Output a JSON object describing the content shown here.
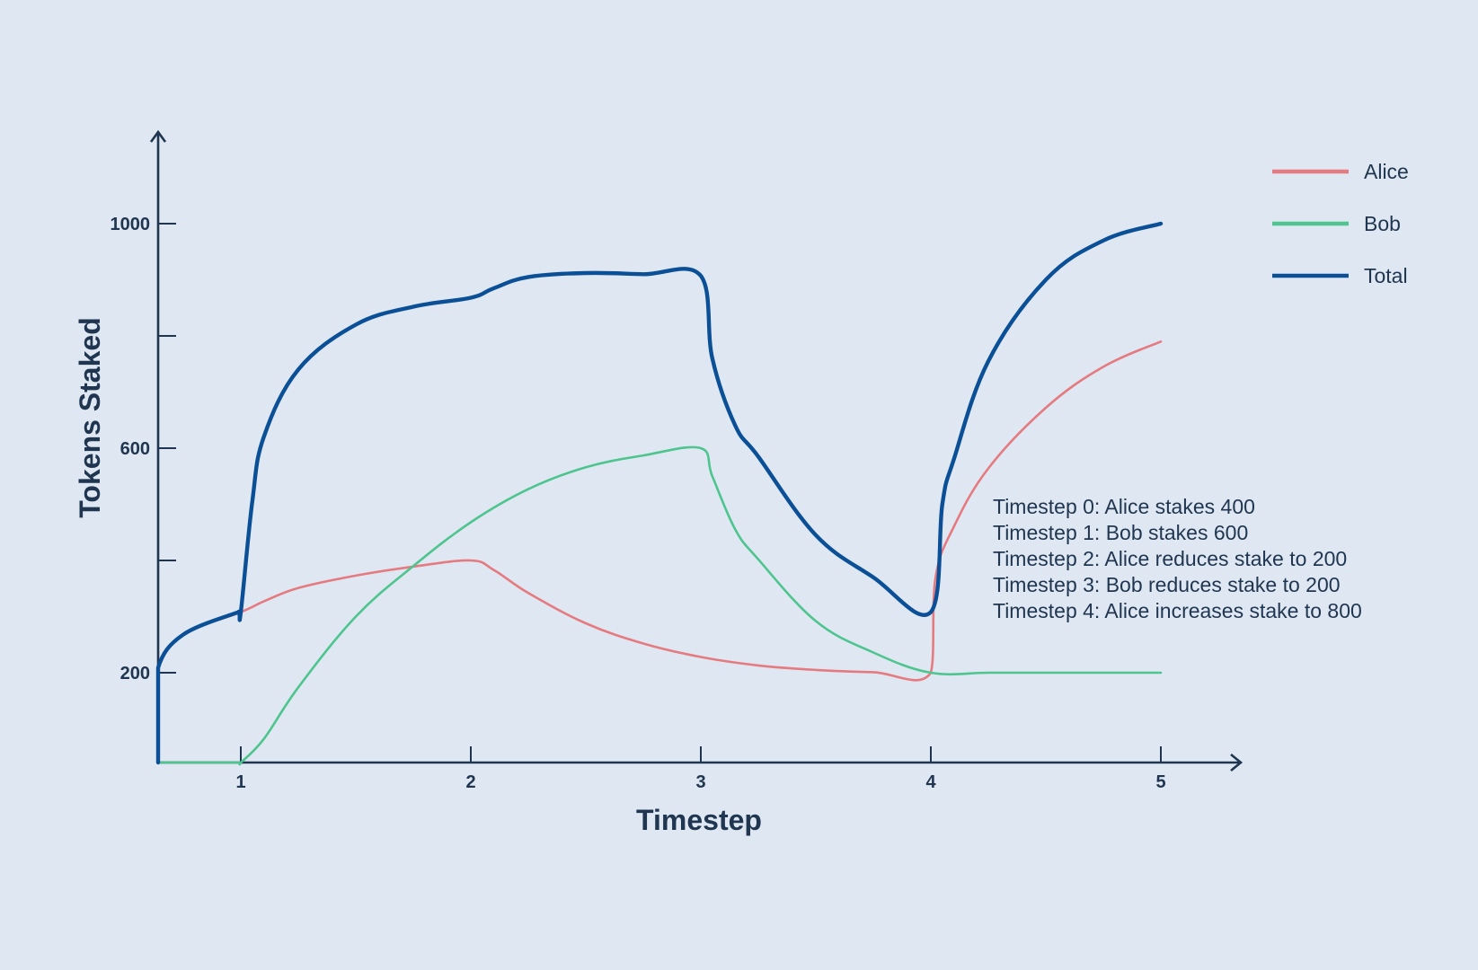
{
  "chart_data": {
    "type": "line",
    "title": "",
    "xlabel": "Timestep",
    "ylabel": "Tokens Staked",
    "x_ticks": [
      1,
      2,
      3,
      4,
      5
    ],
    "y_ticks": [
      200,
      400,
      600,
      800,
      1000
    ],
    "y_tick_labels": [
      "200",
      "",
      "600",
      "",
      "1000"
    ],
    "xlim": [
      0.64,
      5.35
    ],
    "ylim": [
      40,
      1160
    ],
    "grid": false,
    "legend_position": "top-right",
    "series": [
      {
        "name": "Alice",
        "color": "#e57a80",
        "x": [
          0,
          0.25,
          0.5,
          0.75,
          1,
          1.1,
          1.25,
          1.5,
          1.75,
          2,
          2.1,
          2.25,
          2.5,
          2.75,
          3,
          3.25,
          3.5,
          3.75,
          4,
          4.02,
          4.1,
          4.25,
          4.5,
          4.75,
          5
        ],
        "y": [
          0,
          124,
          209,
          268,
          308,
          327,
          351,
          373,
          389,
          400,
          383,
          342,
          288,
          252,
          228,
          213,
          205,
          201,
          200,
          368,
          460,
          564,
          672,
          745,
          790
        ]
      },
      {
        "name": "Bob",
        "color": "#4ec48e",
        "x": [
          0,
          0.5,
          0.99,
          1.0,
          1.1,
          1.25,
          1.5,
          1.75,
          2,
          2.25,
          2.5,
          2.75,
          3,
          3.05,
          3.15,
          3.25,
          3.5,
          3.75,
          4,
          4.25,
          4.5,
          4.75,
          5
        ],
        "y": [
          0,
          0,
          0,
          0,
          82,
          174,
          300,
          390,
          468,
          527,
          566,
          587,
          600,
          550,
          455,
          402,
          292,
          236,
          200,
          200,
          200,
          200,
          200
        ]
      },
      {
        "name": "Total",
        "color": "#0b4f96",
        "x": [
          0,
          0.25,
          0.5,
          0.75,
          0.99,
          1.0,
          1.05,
          1.1,
          1.25,
          1.5,
          1.75,
          2,
          2.1,
          2.25,
          2.5,
          2.75,
          3,
          3.05,
          3.15,
          3.25,
          3.5,
          3.75,
          4,
          4.05,
          4.1,
          4.25,
          4.5,
          4.75,
          5
        ],
        "y": [
          0,
          124,
          209,
          268,
          308,
          308,
          505,
          620,
          740,
          820,
          852,
          868,
          885,
          905,
          912,
          910,
          907,
          760,
          640,
          585,
          445,
          370,
          308,
          500,
          580,
          755,
          900,
          970,
          1000
        ]
      }
    ]
  },
  "annotations": [
    "Timestep 0: Alice stakes 400",
    "Timestep 1: Bob stakes 600",
    "Timestep 2: Alice reduces stake to 200",
    "Timestep 3: Bob reduces stake to 200",
    "Timestep 4: Alice increases stake to 800"
  ],
  "colors": {
    "background": "#dfe8f2",
    "axis": "#1f3550",
    "text": "#1f3550"
  }
}
